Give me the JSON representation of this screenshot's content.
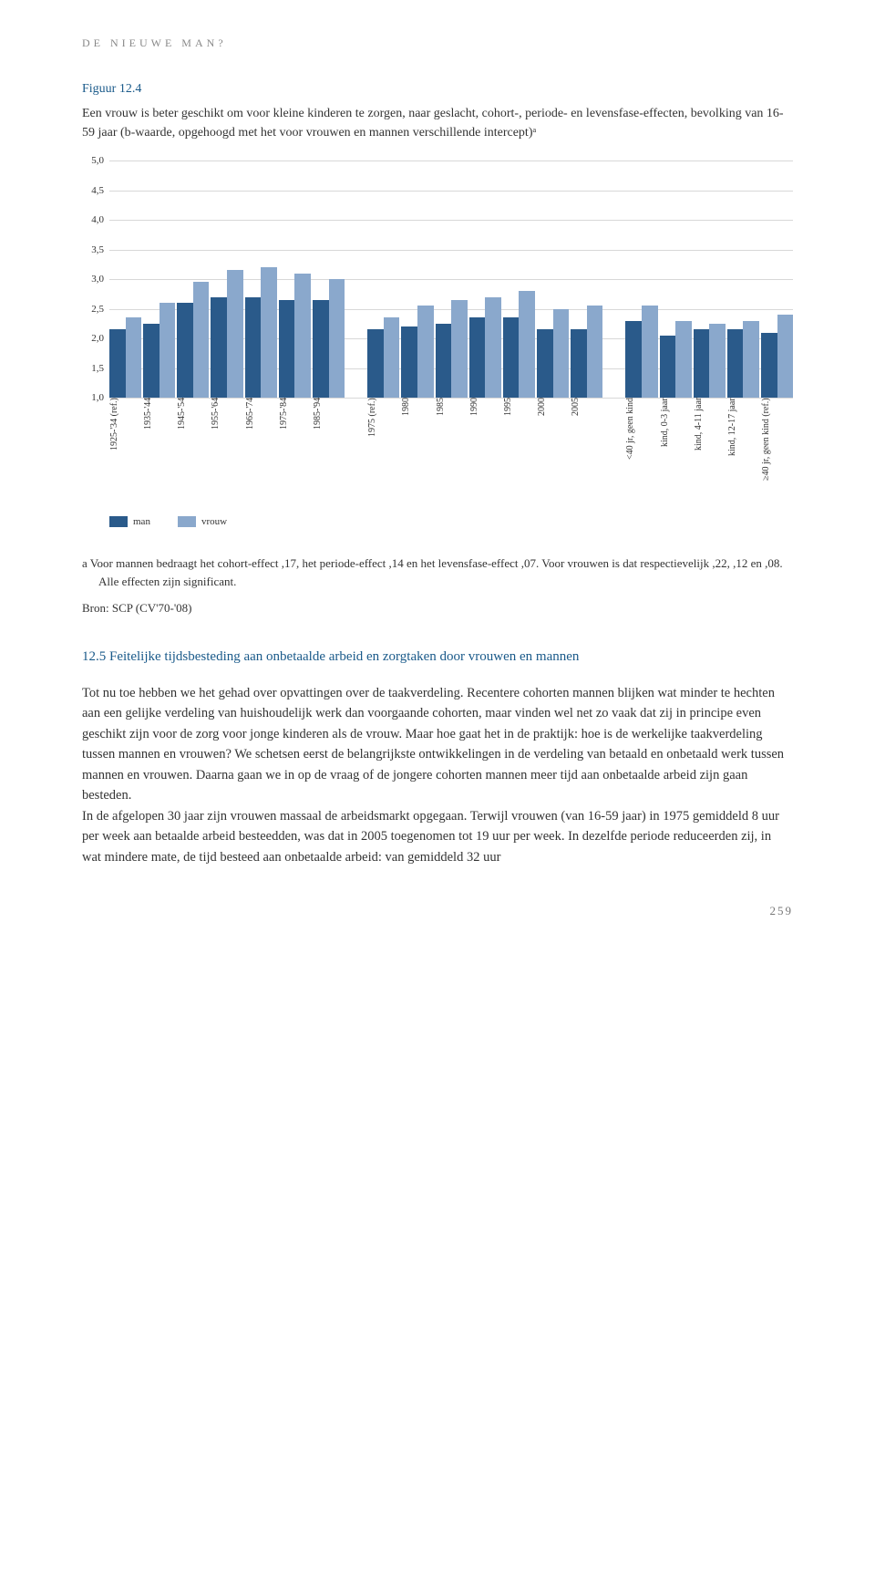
{
  "header": "DE NIEUWE MAN?",
  "figure": {
    "label": "Figuur 12.4",
    "description": "Een vrouw is beter geschikt om voor kleine kinderen te zorgen, naar geslacht, cohort-, periode- en levensfase-effecten, bevolking van 16-59 jaar (b-waarde, opgehoogd met het voor vrouwen en mannen verschillende intercept)ᵃ"
  },
  "chart": {
    "ylim": [
      1.0,
      5.0
    ],
    "ytick_step": 0.5,
    "yticks": [
      "1,0",
      "1,5",
      "2,0",
      "2,5",
      "3,0",
      "3,5",
      "4,0",
      "4,5",
      "5,0"
    ],
    "colors": {
      "man": "#2a5a8a",
      "vrouw": "#8aa8cc",
      "grid": "#d8d8d8",
      "bg": "#ffffff"
    },
    "groups": [
      {
        "label": "1925-'34 (ref.)",
        "man": 2.15,
        "vrouw": 2.35
      },
      {
        "label": "1935-'44",
        "man": 2.25,
        "vrouw": 2.6
      },
      {
        "label": "1945-'54",
        "man": 2.6,
        "vrouw": 2.95
      },
      {
        "label": "1955-'64",
        "man": 2.7,
        "vrouw": 3.15
      },
      {
        "label": "1965-'74",
        "man": 2.7,
        "vrouw": 3.2
      },
      {
        "label": "1975-'84",
        "man": 2.65,
        "vrouw": 3.1
      },
      {
        "label": "1985-'94",
        "man": 2.65,
        "vrouw": 3.0
      },
      {
        "spacer": true
      },
      {
        "label": "1975 (ref.)",
        "man": 2.15,
        "vrouw": 2.35
      },
      {
        "label": "1980",
        "man": 2.2,
        "vrouw": 2.55
      },
      {
        "label": "1985",
        "man": 2.25,
        "vrouw": 2.65
      },
      {
        "label": "1990",
        "man": 2.35,
        "vrouw": 2.7
      },
      {
        "label": "1995",
        "man": 2.35,
        "vrouw": 2.8
      },
      {
        "label": "2000",
        "man": 2.15,
        "vrouw": 2.5
      },
      {
        "label": "2005",
        "man": 2.15,
        "vrouw": 2.55
      },
      {
        "spacer": true
      },
      {
        "label": "<40 jr, geen kind",
        "man": 2.3,
        "vrouw": 2.55
      },
      {
        "label": "kind, 0-3 jaar",
        "man": 2.05,
        "vrouw": 2.3
      },
      {
        "label": "kind, 4-11 jaar",
        "man": 2.15,
        "vrouw": 2.25
      },
      {
        "label": "kind, 12-17 jaar",
        "man": 2.15,
        "vrouw": 2.3
      },
      {
        "label": "≥40 jr, geen kind (ref.)",
        "man": 2.1,
        "vrouw": 2.4
      }
    ],
    "legend": [
      {
        "label": "man",
        "color": "#2a5a8a"
      },
      {
        "label": "vrouw",
        "color": "#8aa8cc"
      }
    ]
  },
  "footnote": "a   Voor mannen bedraagt het cohort-effect ,17, het periode-effect ,14 en het levensfase-effect ,07. Voor vrouwen is dat respectievelijk ,22, ,12 en ,08. Alle effecten zijn significant.",
  "source": "Bron: SCP (CV'70-'08)",
  "section": {
    "heading": "12.5  Feitelijke tijdsbesteding aan onbetaalde arbeid en zorgtaken door vrouwen en mannen",
    "body": "Tot nu toe hebben we het gehad over opvattingen over de taakverdeling. Recentere cohorten mannen blijken wat minder te hechten aan een gelijke verdeling van huishoudelijk werk dan voorgaande cohorten, maar vinden wel net zo vaak dat zij in principe even geschikt zijn voor de zorg voor jonge kinderen als de vrouw. Maar hoe gaat het in de praktijk: hoe is de werkelijke taakverdeling tussen mannen en vrouwen? We schetsen eerst de belangrijkste ontwikkelingen in de verdeling van betaald en onbetaald werk tussen mannen en vrouwen. Daarna gaan we in op de vraag of de jongere cohorten mannen meer tijd aan onbetaalde arbeid zijn gaan besteden.\nIn de afgelopen 30 jaar zijn vrouwen massaal de arbeidsmarkt opgegaan. Terwijl vrouwen (van 16-59 jaar) in 1975 gemiddeld 8 uur per week aan betaalde arbeid besteedden, was dat in 2005 toegenomen tot 19 uur per week. In dezelfde periode reduceerden zij, in wat mindere mate, de tijd besteed aan onbetaalde arbeid: van gemiddeld 32 uur"
  },
  "page_number": "259"
}
